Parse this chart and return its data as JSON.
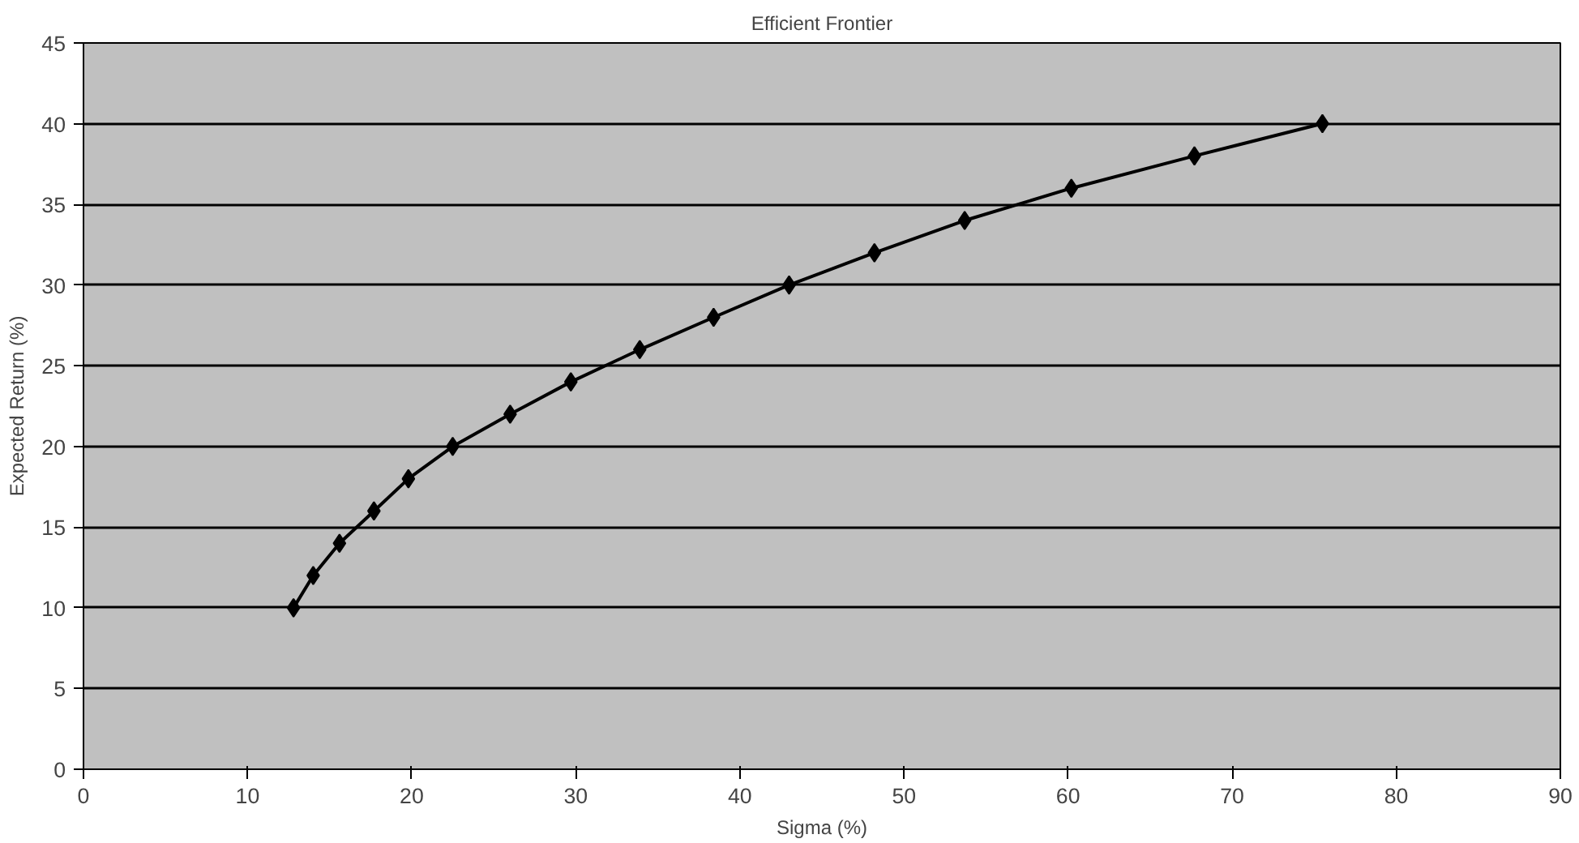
{
  "chart_data": {
    "type": "line",
    "title": "Efficient Frontier",
    "xlabel": "Sigma (%)",
    "ylabel": "Expected Return (%)",
    "x": [
      12.8,
      14.0,
      15.6,
      17.7,
      19.8,
      22.5,
      26.0,
      29.7,
      33.9,
      38.4,
      43.0,
      48.2,
      53.7,
      60.2,
      67.7,
      75.5
    ],
    "values": [
      10,
      12,
      14,
      16,
      18,
      20,
      22,
      24,
      26,
      28,
      30,
      32,
      34,
      36,
      38,
      40
    ],
    "color": "#000000",
    "marker": "diamond",
    "line_style": "solid",
    "xlim": [
      0,
      90
    ],
    "ylim": [
      0,
      45
    ],
    "xticks": [
      0,
      10,
      20,
      30,
      40,
      50,
      60,
      70,
      80,
      90
    ],
    "yticks": [
      0,
      5,
      10,
      15,
      20,
      25,
      30,
      35,
      40,
      45
    ],
    "grid": "y"
  }
}
